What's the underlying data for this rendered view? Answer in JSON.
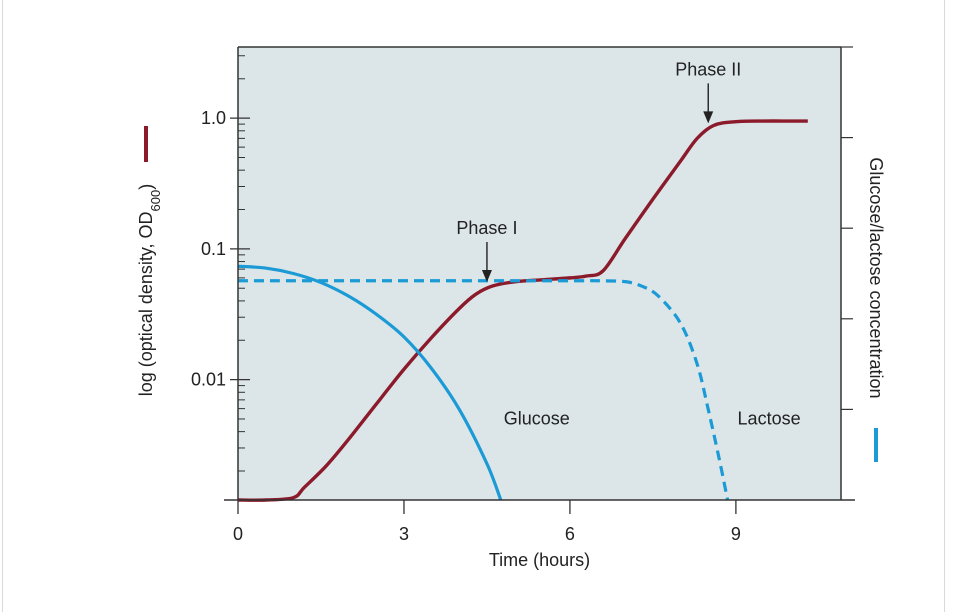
{
  "chart_data": {
    "type": "line",
    "xlabel": "Time (hours)",
    "x_ticks": [
      "0",
      "3",
      "6",
      "9"
    ],
    "xlim": [
      0,
      10.9
    ],
    "ylabel_left_parts": [
      "log (optical density, OD",
      "600",
      ")"
    ],
    "y_left_scale": "log",
    "y_left_ticks": [
      "1.0",
      "0.1",
      "0.01"
    ],
    "y_left_ticks_values": [
      1.0,
      0.1,
      0.01
    ],
    "ylim_left": [
      0.0012,
      3.5
    ],
    "ylabel_right": "Glucose/lactose concentration",
    "y_right_ticks_count": 5,
    "grid": false,
    "legend": "none; series identified by colored marks next to the axis titles",
    "colors": {
      "plot_background": "#dce6e9",
      "od": "#8b1a2b",
      "glucose": "#1b9ad6",
      "lactose": "#1b9ad6"
    },
    "series": [
      {
        "name": "OD600",
        "axis": "left",
        "style": "solid",
        "x": [
          0,
          0.5,
          1.0,
          1.2,
          1.6,
          2.0,
          2.5,
          3.0,
          3.5,
          4.0,
          4.3,
          4.6,
          5.0,
          5.5,
          6.0,
          6.3,
          6.6,
          7.0,
          7.5,
          8.0,
          8.3,
          8.6,
          9.0,
          9.5,
          10.0,
          10.3
        ],
        "y": [
          0.0012,
          0.0012,
          0.00125,
          0.0015,
          0.0022,
          0.0035,
          0.0065,
          0.012,
          0.021,
          0.035,
          0.045,
          0.052,
          0.056,
          0.058,
          0.06,
          0.062,
          0.068,
          0.12,
          0.24,
          0.47,
          0.7,
          0.88,
          0.94,
          0.95,
          0.95,
          0.95
        ]
      },
      {
        "name": "Glucose",
        "axis": "right",
        "style": "solid",
        "x": [
          0,
          0.5,
          1.0,
          1.5,
          2.0,
          2.5,
          3.0,
          3.5,
          4.0,
          4.5,
          4.75
        ],
        "y": [
          2.58,
          2.56,
          2.5,
          2.4,
          2.25,
          2.05,
          1.8,
          1.45,
          1.0,
          0.4,
          0.0
        ]
      },
      {
        "name": "Lactose",
        "axis": "right",
        "style": "dashed",
        "x": [
          0,
          2,
          4,
          6,
          6.5,
          7.0,
          7.3,
          7.6,
          8.0,
          8.3,
          8.5,
          8.7,
          8.85
        ],
        "y": [
          2.42,
          2.42,
          2.42,
          2.42,
          2.42,
          2.41,
          2.36,
          2.25,
          1.95,
          1.5,
          1.0,
          0.45,
          0.0
        ]
      }
    ],
    "annotations": [
      {
        "text": "Glucose",
        "x": 5.4,
        "y_right": 0.9
      },
      {
        "text": "Lactose",
        "x": 9.6,
        "y_right": 0.9
      },
      {
        "text": "Phase I",
        "x": 4.5,
        "y_left": 0.052
      },
      {
        "text": "Phase II",
        "x": 8.5,
        "y_left": 0.85
      }
    ]
  }
}
